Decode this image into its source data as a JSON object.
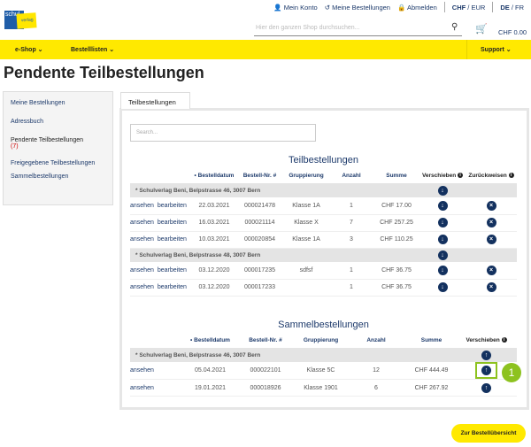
{
  "header": {
    "links": [
      "Mein Konto",
      "Meine Bestellungen",
      "Abmelden"
    ],
    "currency": {
      "active": "CHF",
      "other": "EUR"
    },
    "language": {
      "active": "DE",
      "other": "FR"
    },
    "logo_text": "schulverlag",
    "search_placeholder": "Hier den ganzen Shop durchsuchen...",
    "cart_total": "CHF 0.00"
  },
  "nav": {
    "items": [
      "e-Shop",
      "Bestelllisten"
    ],
    "support": "Support"
  },
  "page_title": "Pendente Teilbestellungen",
  "sidebar": {
    "items": [
      "Meine Bestellungen",
      "Adressbuch"
    ],
    "active": "Pendente Teilbestellungen",
    "active_count": "(7)",
    "more": [
      "Freigegebene Teilbestellungen",
      "Sammelbestellungen"
    ]
  },
  "tab": "Teilbestellungen",
  "search_placeholder": "Search...",
  "teil": {
    "title": "Teilbestellungen",
    "headers": [
      "Bestelldatum",
      "Bestell-Nr. #",
      "Gruppierung",
      "Anzahl",
      "Summe",
      "Verschieben",
      "Zurückweisen"
    ],
    "view": "ansehen",
    "edit": "bearbeiten",
    "groups": [
      {
        "name": "* Schulverlag Beni, Belpstrasse 46, 3007 Bern",
        "rows": [
          [
            "22.03.2021",
            "000021478",
            "Klasse 1A",
            "1",
            "CHF 17.00"
          ],
          [
            "16.03.2021",
            "000021114",
            "Klasse X",
            "7",
            "CHF 257.25"
          ],
          [
            "10.03.2021",
            "000020854",
            "Klasse 1A",
            "3",
            "CHF 110.25"
          ]
        ]
      },
      {
        "name": "* Schulverlag Beni, Belpstrasse 48, 3007 Bern",
        "rows": [
          [
            "03.12.2020",
            "000017235",
            "sdfsf",
            "1",
            "CHF 36.75"
          ],
          [
            "03.12.2020",
            "000017233",
            "",
            "1",
            "CHF 36.75"
          ]
        ]
      }
    ]
  },
  "sammel": {
    "title": "Sammelbestellungen",
    "headers": [
      "Bestelldatum",
      "Bestell-Nr. #",
      "Gruppierung",
      "Anzahl",
      "Summe",
      "Verschieben"
    ],
    "view": "ansehen",
    "group": "* Schulverlag Beni, Belpstrasse 46, 3007 Bern",
    "rows": [
      [
        "05.04.2021",
        "000022101",
        "Klasse 5C",
        "12",
        "CHF 444.49"
      ],
      [
        "19.01.2021",
        "000018926",
        "Klasse 1901",
        "6",
        "CHF 267.92"
      ]
    ]
  },
  "callout": "1",
  "button": "Zur Bestellübersicht",
  "colors": {
    "accent": "#ffe900",
    "navy": "#13315f",
    "highlight": "#8dc21f"
  }
}
